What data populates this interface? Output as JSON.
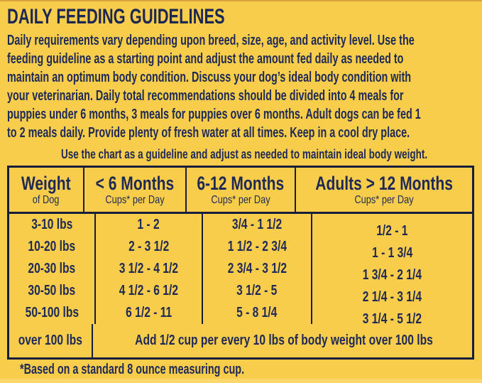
{
  "colors": {
    "background": "#F8CD4C",
    "text_navy": "#1E2A55",
    "border_navy": "#161E3C",
    "bottom_strip": "#FBD76C"
  },
  "title": "DAILY FEEDING GUIDELINES",
  "intro": {
    "lines": [
      "Daily requirements vary depending upon breed, size, age, and activity level. Use the",
      "feeding guideline as a starting point and adjust the amount fed daily as needed to",
      "maintain an optimum body condition. Discuss your dog’s ideal body condition with",
      "your veterinarian. Daily total recommendations should be divided into 4 meals for",
      "puppies under 6 months, 3 meals for puppies over 6 months. Adult dogs can be fed 1",
      "to 2 meals daily. Provide plenty of fresh water at all times. Keep in a cool dry place."
    ]
  },
  "note": "Use the chart as a guideline and adjust as needed to maintain ideal body weight.",
  "table": {
    "headers": [
      {
        "main": "Weight",
        "sub": "of Dog"
      },
      {
        "main": "< 6 Months",
        "sub": "Cups* per Day"
      },
      {
        "main": "6-12 Months",
        "sub": "Cups* per Day"
      },
      {
        "main": "Adults > 12 Months",
        "sub": "Cups* per Day"
      }
    ],
    "rows": [
      {
        "weight": "3-10 lbs",
        "under6": "1 - 2",
        "m6to12": "3/4 - 1 1/2",
        "adults": "1/2 - 1"
      },
      {
        "weight": "10-20 lbs",
        "under6": "2 - 3 1/2",
        "m6to12": "1 1/2 - 2 3/4",
        "adults": "1 - 1 3/4"
      },
      {
        "weight": "20-30 lbs",
        "under6": "3 1/2 - 4 1/2",
        "m6to12": "2 3/4 - 3 1/2",
        "adults": "1 3/4 - 2 1/4"
      },
      {
        "weight": "30-50 lbs",
        "under6": "4 1/2 - 6 1/2",
        "m6to12": "3 1/2 - 5",
        "adults": "2 1/4 - 3 1/4"
      },
      {
        "weight": "50-100 lbs",
        "under6": "6 1/2 - 11",
        "m6to12": "5 - 8 1/4",
        "adults": "3 1/4 - 5 1/2"
      }
    ],
    "footer_row": {
      "weight": "over 100 lbs",
      "note": "Add 1/2 cup per every 10 lbs of body weight over 100 lbs"
    }
  },
  "footnote": "*Based on a standard 8 ounce measuring cup."
}
